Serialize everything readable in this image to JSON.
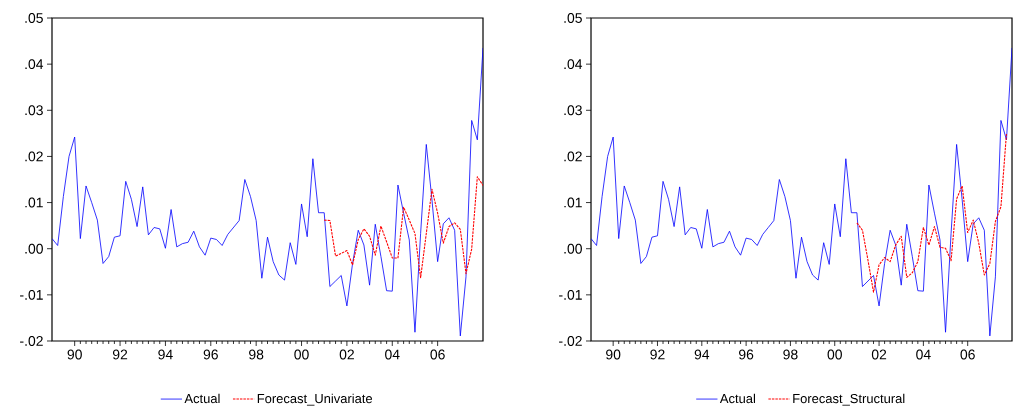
{
  "chart_data": [
    {
      "type": "line",
      "x": [
        1989,
        1989.25,
        1989.5,
        1989.75,
        1990,
        1990.25,
        1990.5,
        1990.75,
        1991,
        1991.25,
        1991.5,
        1991.75,
        1992,
        1992.25,
        1992.5,
        1992.75,
        1993,
        1993.25,
        1993.5,
        1993.75,
        1994,
        1994.25,
        1994.5,
        1994.75,
        1995,
        1995.25,
        1995.5,
        1995.75,
        1996,
        1996.25,
        1996.5,
        1996.75,
        1997,
        1997.25,
        1997.5,
        1997.75,
        1998,
        1998.25,
        1998.5,
        1998.75,
        1999,
        1999.25,
        1999.5,
        1999.75,
        2000,
        2000.25,
        2000.5,
        2000.75,
        2001,
        2001.25,
        2001.5,
        2001.75,
        2002,
        2002.25,
        2002.5,
        2002.75,
        2003,
        2003.25,
        2003.5,
        2003.75,
        2004,
        2004.25,
        2004.5,
        2004.75,
        2005,
        2005.25,
        2005.5,
        2005.75,
        2006,
        2006.25,
        2006.5,
        2006.75,
        2007,
        2007.25,
        2007.5,
        2007.75,
        2008
      ],
      "series": [
        {
          "name": "Actual",
          "color": "#0000ff",
          "line_style": "solid",
          "values": [
            0.0022,
            0.0007,
            0.0113,
            0.02,
            0.0242,
            0.0022,
            0.0136,
            0.01,
            0.0062,
            -0.0032,
            -0.0017,
            0.0025,
            0.0028,
            0.0146,
            0.0107,
            0.0048,
            0.0134,
            0.003,
            0.0046,
            0.0043,
            0.0001,
            0.0085,
            0.0004,
            0.0011,
            0.0014,
            0.0038,
            0.0004,
            -0.0014,
            0.0023,
            0.002,
            0.0007,
            0.0031,
            0.0046,
            0.0061,
            0.015,
            0.0113,
            0.0061,
            -0.0064,
            0.0025,
            -0.0028,
            -0.0057,
            -0.0068,
            0.0013,
            -0.0034,
            0.0097,
            0.0026,
            0.0195,
            0.0078,
            0.0078,
            -0.0082,
            -0.007,
            -0.0058,
            -0.0124,
            -0.0032,
            0.004,
            0.0008,
            -0.0079,
            0.0053,
            -0.0017,
            -0.0091,
            -0.0092,
            0.0138,
            0.0077,
            0.0019,
            -0.0181,
            0.0033,
            0.0226,
            0.0106,
            -0.0028,
            0.0054,
            0.0067,
            0.004,
            -0.0189,
            -0.0061,
            0.0278,
            0.0236,
            0.0435
          ]
        },
        {
          "name": "Forecast_Univariate",
          "color": "#ff0000",
          "line_style": "dashed",
          "values": [
            null,
            null,
            null,
            null,
            null,
            null,
            null,
            null,
            null,
            null,
            null,
            null,
            null,
            null,
            null,
            null,
            null,
            null,
            null,
            null,
            null,
            null,
            null,
            null,
            null,
            null,
            null,
            null,
            null,
            null,
            null,
            null,
            null,
            null,
            null,
            null,
            null,
            null,
            null,
            null,
            null,
            null,
            null,
            null,
            null,
            null,
            null,
            null,
            0.0062,
            0.0061,
            -0.0016,
            -0.001,
            -0.0004,
            -0.0035,
            0.002,
            0.0043,
            0.0027,
            -0.0014,
            0.0049,
            0.0015,
            -0.002,
            -0.002,
            0.009,
            0.0062,
            0.0033,
            -0.0063,
            0.0033,
            0.0129,
            0.0077,
            0.0012,
            0.0048,
            0.0056,
            0.0042,
            -0.0054,
            -0.0001,
            0.0156,
            0.0137
          ]
        }
      ],
      "xlim": [
        1989,
        2008
      ],
      "xticks": [
        {
          "value": 1990,
          "label": "90"
        },
        {
          "value": 1992,
          "label": "92"
        },
        {
          "value": 1994,
          "label": "94"
        },
        {
          "value": 1996,
          "label": "96"
        },
        {
          "value": 1998,
          "label": "98"
        },
        {
          "value": 2000,
          "label": "00"
        },
        {
          "value": 2002,
          "label": "02"
        },
        {
          "value": 2004,
          "label": "04"
        },
        {
          "value": 2006,
          "label": "06"
        }
      ],
      "ylim": [
        -0.02,
        0.05
      ],
      "yticks": [
        {
          "value": -0.02,
          "label": "-.02"
        },
        {
          "value": -0.01,
          "label": "-.01"
        },
        {
          "value": 0,
          "label": ".00"
        },
        {
          "value": 0.01,
          "label": ".01"
        },
        {
          "value": 0.02,
          "label": ".02"
        },
        {
          "value": 0.03,
          "label": ".03"
        },
        {
          "value": 0.04,
          "label": ".04"
        },
        {
          "value": 0.05,
          "label": ".05"
        }
      ],
      "legend": "bottom"
    },
    {
      "type": "line",
      "x": [
        1989,
        1989.25,
        1989.5,
        1989.75,
        1990,
        1990.25,
        1990.5,
        1990.75,
        1991,
        1991.25,
        1991.5,
        1991.75,
        1992,
        1992.25,
        1992.5,
        1992.75,
        1993,
        1993.25,
        1993.5,
        1993.75,
        1994,
        1994.25,
        1994.5,
        1994.75,
        1995,
        1995.25,
        1995.5,
        1995.75,
        1996,
        1996.25,
        1996.5,
        1996.75,
        1997,
        1997.25,
        1997.5,
        1997.75,
        1998,
        1998.25,
        1998.5,
        1998.75,
        1999,
        1999.25,
        1999.5,
        1999.75,
        2000,
        2000.25,
        2000.5,
        2000.75,
        2001,
        2001.25,
        2001.5,
        2001.75,
        2002,
        2002.25,
        2002.5,
        2002.75,
        2003,
        2003.25,
        2003.5,
        2003.75,
        2004,
        2004.25,
        2004.5,
        2004.75,
        2005,
        2005.25,
        2005.5,
        2005.75,
        2006,
        2006.25,
        2006.5,
        2006.75,
        2007,
        2007.25,
        2007.5,
        2007.75,
        2008
      ],
      "series": [
        {
          "name": "Actual",
          "color": "#0000ff",
          "line_style": "solid",
          "values": [
            0.0022,
            0.0007,
            0.0113,
            0.02,
            0.0242,
            0.0022,
            0.0136,
            0.01,
            0.0062,
            -0.0032,
            -0.0017,
            0.0025,
            0.0028,
            0.0146,
            0.0107,
            0.0048,
            0.0134,
            0.003,
            0.0046,
            0.0043,
            0.0001,
            0.0085,
            0.0004,
            0.0011,
            0.0014,
            0.0038,
            0.0004,
            -0.0014,
            0.0023,
            0.002,
            0.0007,
            0.0031,
            0.0046,
            0.0061,
            0.015,
            0.0113,
            0.0061,
            -0.0064,
            0.0025,
            -0.0028,
            -0.0057,
            -0.0068,
            0.0013,
            -0.0034,
            0.0097,
            0.0026,
            0.0195,
            0.0078,
            0.0078,
            -0.0082,
            -0.007,
            -0.0058,
            -0.0124,
            -0.0032,
            0.004,
            0.0008,
            -0.0079,
            0.0053,
            -0.0017,
            -0.0091,
            -0.0092,
            0.0138,
            0.0077,
            0.0019,
            -0.0181,
            0.0033,
            0.0226,
            0.0106,
            -0.0028,
            0.0054,
            0.0067,
            0.004,
            -0.0189,
            -0.0061,
            0.0278,
            0.0236,
            0.0435
          ]
        },
        {
          "name": "Forecast_Structural",
          "color": "#ff0000",
          "line_style": "dashed",
          "values": [
            null,
            null,
            null,
            null,
            null,
            null,
            null,
            null,
            null,
            null,
            null,
            null,
            null,
            null,
            null,
            null,
            null,
            null,
            null,
            null,
            null,
            null,
            null,
            null,
            null,
            null,
            null,
            null,
            null,
            null,
            null,
            null,
            null,
            null,
            null,
            null,
            null,
            null,
            null,
            null,
            null,
            null,
            null,
            null,
            null,
            null,
            null,
            null,
            0.0056,
            0.004,
            -0.0025,
            -0.0094,
            -0.0035,
            -0.0019,
            -0.0028,
            0.0008,
            0.0027,
            -0.0062,
            -0.0052,
            -0.0028,
            0.0046,
            0.0008,
            0.0048,
            0.0003,
            0.0001,
            -0.0026,
            0.0108,
            0.0136,
            0.0035,
            0.0062,
            0.0012,
            -0.0057,
            -0.0032,
            0.0059,
            0.0091,
            0.025,
            null
          ]
        }
      ],
      "xlim": [
        1989,
        2008
      ],
      "xticks": [
        {
          "value": 1990,
          "label": "90"
        },
        {
          "value": 1992,
          "label": "92"
        },
        {
          "value": 1994,
          "label": "94"
        },
        {
          "value": 1996,
          "label": "96"
        },
        {
          "value": 1998,
          "label": "98"
        },
        {
          "value": 2000,
          "label": "00"
        },
        {
          "value": 2002,
          "label": "02"
        },
        {
          "value": 2004,
          "label": "04"
        },
        {
          "value": 2006,
          "label": "06"
        }
      ],
      "ylim": [
        -0.02,
        0.05
      ],
      "yticks": [
        {
          "value": -0.02,
          "label": "-.02"
        },
        {
          "value": -0.01,
          "label": "-.01"
        },
        {
          "value": 0,
          "label": ".00"
        },
        {
          "value": 0.01,
          "label": ".01"
        },
        {
          "value": 0.02,
          "label": ".02"
        },
        {
          "value": 0.03,
          "label": ".03"
        },
        {
          "value": 0.04,
          "label": ".04"
        },
        {
          "value": 0.05,
          "label": ".05"
        }
      ],
      "legend": "bottom"
    }
  ]
}
